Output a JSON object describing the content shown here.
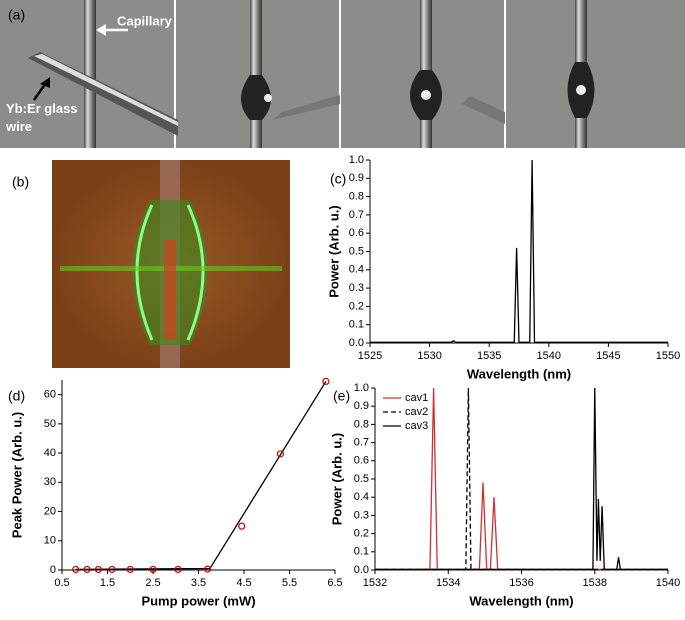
{
  "photos": {
    "a": {
      "label": "(a)",
      "capillary": "Capillary",
      "wire": "Yb:Er glass wire"
    },
    "b": {
      "label": "(b)"
    }
  },
  "chart_data": [
    {
      "type": "line",
      "label": "(c)",
      "x_label": "Wavelength (nm)",
      "y_label": "Power (Arb. u.)",
      "color": "#000000",
      "x": [
        1525,
        1531.8,
        1532.0,
        1532.2,
        1537.1,
        1537.3,
        1537.5,
        1538.4,
        1538.6,
        1538.8,
        1550
      ],
      "values": [
        0.004,
        0.004,
        0.012,
        0.004,
        0.004,
        0.52,
        0.004,
        0.004,
        1.0,
        0.004,
        0.004
      ],
      "xlim": [
        1525,
        1550
      ],
      "xticks": [
        1525,
        1530,
        1535,
        1540,
        1545,
        1550
      ],
      "ylim": [
        0,
        1
      ],
      "yticks": [
        {
          "value": 0,
          "label": "0.0"
        },
        0.1,
        0.2,
        0.3,
        0.4,
        0.5,
        0.6,
        0.7,
        0.8,
        0.9,
        {
          "value": 1,
          "label": "1.0"
        }
      ]
    },
    {
      "type": "scatter",
      "label": "(d)",
      "x_label": "Pump power (mW)",
      "y_label": "Peak Power (Arb. u.)",
      "color": "#cc0000",
      "fit_color": "#000000",
      "x": [
        0.8,
        1.05,
        1.3,
        1.6,
        2.0,
        2.5,
        3.05,
        3.7,
        4.45,
        5.3,
        6.3
      ],
      "values": [
        0.2,
        0.2,
        0.2,
        0.2,
        0.2,
        0.2,
        0.2,
        0.3,
        15,
        39.7,
        64.5
      ],
      "fit": {
        "x": [
          0.8,
          3.75,
          6.3
        ],
        "values": [
          0.2,
          0.5,
          64.5
        ]
      },
      "xlim": [
        0.5,
        6.5
      ],
      "xticks": [
        0.5,
        1.5,
        2.5,
        3.5,
        4.5,
        5.5,
        6.5
      ],
      "ylim": [
        0,
        65
      ],
      "yticks": [
        0,
        10,
        20,
        30,
        40,
        50,
        60
      ]
    },
    {
      "type": "line",
      "label": "(e)",
      "x_label": "Wavelength (nm)",
      "y_label": "Power (Arb. u.)",
      "series": [
        {
          "name": "cav1",
          "color": "#d03030",
          "dash": false,
          "x": [
            1532,
            1533.5,
            1533.6,
            1533.7,
            1534.85,
            1534.95,
            1535.05,
            1535.15,
            1535.25,
            1535.35,
            1540
          ],
          "values": [
            0.003,
            0.003,
            1.0,
            0.003,
            0.003,
            0.48,
            0.003,
            0.003,
            0.4,
            0.003,
            0.003
          ]
        },
        {
          "name": "cav2",
          "color": "#000000",
          "dash": true,
          "x": [
            1532,
            1534.48,
            1534.55,
            1534.62,
            1540
          ],
          "values": [
            0.003,
            0.003,
            1.0,
            0.003,
            0.003
          ]
        },
        {
          "name": "cav3",
          "color": "#000000",
          "dash": false,
          "x": [
            1532,
            1537.95,
            1538.0,
            1538.06,
            1538.1,
            1538.15,
            1538.2,
            1538.26,
            1538.6,
            1538.65,
            1538.7,
            1540
          ],
          "values": [
            0.003,
            0.003,
            1.0,
            0.05,
            0.39,
            0.05,
            0.35,
            0.003,
            0.003,
            0.07,
            0.003,
            0.003
          ]
        }
      ],
      "legend": "upper left",
      "xlim": [
        1532,
        1540
      ],
      "xticks": [
        1532,
        1534,
        1536,
        1538,
        1540
      ],
      "ylim": [
        0,
        1
      ],
      "yticks": [
        {
          "value": 0,
          "label": "0.0"
        },
        0.1,
        0.2,
        0.3,
        0.4,
        0.5,
        0.6,
        0.7,
        0.8,
        0.9,
        {
          "value": 1,
          "label": "1.0"
        }
      ]
    }
  ]
}
